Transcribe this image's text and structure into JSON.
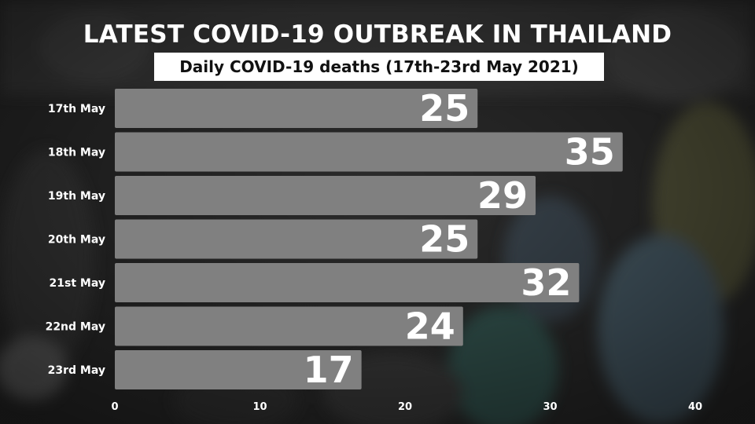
{
  "title": "LATEST COVID-19 OUTBREAK IN THAILAND",
  "subtitle": "Daily COVID-19 deaths (17th-23rd May 2021)",
  "colors": {
    "bar": "#808080",
    "bar_text": "#ffffff",
    "label_text": "#ffffff"
  },
  "chart_data": {
    "type": "bar",
    "orientation": "horizontal",
    "title": "LATEST COVID-19 OUTBREAK IN THAILAND",
    "subtitle": "Daily COVID-19 deaths (17th-23rd May 2021)",
    "categories": [
      "17th May",
      "18th May",
      "19th May",
      "20th May",
      "21st May",
      "22nd May",
      "23rd May"
    ],
    "values": [
      25,
      35,
      29,
      25,
      32,
      24,
      17
    ],
    "xlim": [
      0,
      40
    ],
    "xticks": [
      0,
      10,
      20,
      30,
      40
    ],
    "xlabel": "",
    "ylabel": "",
    "grid": false
  }
}
